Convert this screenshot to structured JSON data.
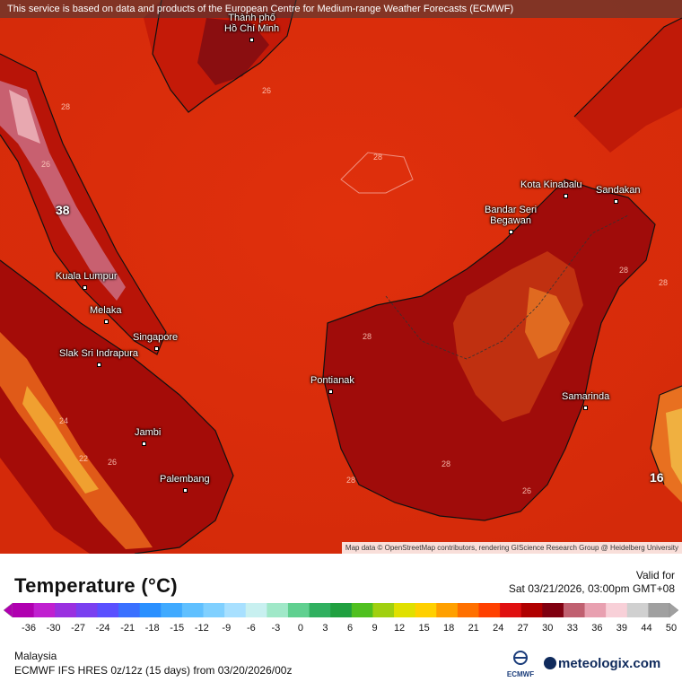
{
  "attribution_top": "This service is based on data and products of the European Centre for Medium-range Weather Forecasts (ECMWF)",
  "attribution_bottom": "Map data © OpenStreetMap contributors, rendering GIScience Research Group @ Heidelberg University",
  "map": {
    "cities": [
      {
        "id": "hcm1",
        "name": "Thành phố"
      },
      {
        "id": "hcm2",
        "name": "Hồ Chí Minh"
      },
      {
        "id": "kk",
        "name": "Kota Kinabalu"
      },
      {
        "id": "sandakan",
        "name": "Sandakan"
      },
      {
        "id": "bsb1",
        "name": "Bandar Seri"
      },
      {
        "id": "bsb2",
        "name": "Begawan"
      },
      {
        "id": "kl",
        "name": "Kuala Lumpur"
      },
      {
        "id": "melaka",
        "name": "Melaka"
      },
      {
        "id": "singapore",
        "name": "Singapore"
      },
      {
        "id": "slak",
        "name": "Slak Sri Indrapura"
      },
      {
        "id": "pontianak",
        "name": "Pontianak"
      },
      {
        "id": "samarinda",
        "name": "Samarinda"
      },
      {
        "id": "jambi",
        "name": "Jambi"
      },
      {
        "id": "palembang",
        "name": "Palembang"
      }
    ],
    "max_label": "38",
    "min_label": "16",
    "isotherm_labels": [
      "26",
      "28",
      "28",
      "26",
      "28",
      "24",
      "22",
      "26",
      "28",
      "28",
      "28",
      "26",
      "28"
    ]
  },
  "legend": {
    "title": "Temperature (°C)",
    "valid_label": "Valid for",
    "valid_time": "Sat 03/21/2026, 03:00pm GMT+08",
    "ticks": [
      "-36",
      "-30",
      "-27",
      "-24",
      "-21",
      "-18",
      "-15",
      "-12",
      "-9",
      "-6",
      "-3",
      "0",
      "3",
      "6",
      "9",
      "12",
      "15",
      "18",
      "21",
      "24",
      "27",
      "30",
      "33",
      "36",
      "39",
      "44",
      "50"
    ],
    "colors": [
      "#b000b0",
      "#c020d0",
      "#9a30e0",
      "#7a40f0",
      "#5a50ff",
      "#3a70ff",
      "#2a90ff",
      "#40aaff",
      "#60c0ff",
      "#80d0ff",
      "#a8e0ff",
      "#c8f0f0",
      "#a0e8c8",
      "#60d090",
      "#30b060",
      "#20a040",
      "#50c020",
      "#a0d010",
      "#e0e000",
      "#ffd000",
      "#ffa000",
      "#ff7000",
      "#ff4000",
      "#e01010",
      "#b00000",
      "#800010",
      "#c06070",
      "#e8a0b0",
      "#f8d0d8",
      "#d0d0d0",
      "#a0a0a0"
    ]
  },
  "footer": {
    "region": "Malaysia",
    "model": "ECMWF IFS HRES 0z/12z (15 days) from  03/20/2026/00z",
    "ecmwf_logo_text": "ECMWF",
    "brand": "meteologix.com"
  }
}
